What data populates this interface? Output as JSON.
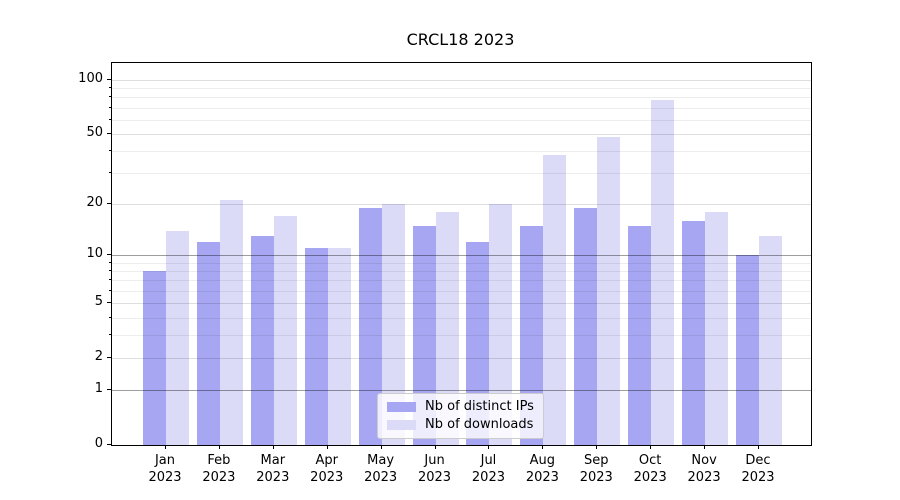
{
  "title": "CRCL18 2023",
  "chart_data": {
    "type": "bar",
    "title": "CRCL18 2023",
    "scale": "symlog",
    "categories": [
      "Jan 2023",
      "Feb 2023",
      "Mar 2023",
      "Apr 2023",
      "May 2023",
      "Jun 2023",
      "Jul 2023",
      "Aug 2023",
      "Sep 2023",
      "Oct 2023",
      "Nov 2023",
      "Dec 2023"
    ],
    "months": [
      "Jan",
      "Feb",
      "Mar",
      "Apr",
      "May",
      "Jun",
      "Jul",
      "Aug",
      "Sep",
      "Oct",
      "Nov",
      "Dec"
    ],
    "year": "2023",
    "series": [
      {
        "name": "Nb of distinct IPs",
        "color": "#a6a6f2",
        "values": [
          8,
          12,
          13,
          11,
          19,
          15,
          12,
          15,
          19,
          15,
          16,
          10
        ]
      },
      {
        "name": "Nb of downloads",
        "color": "#dbdbf8",
        "values": [
          14,
          21,
          17,
          11,
          20,
          18,
          20,
          38,
          48,
          77,
          18,
          13
        ]
      }
    ],
    "xlabel": "",
    "ylabel": "",
    "y_ticks": [
      0,
      1,
      2,
      5,
      10,
      20,
      50,
      100
    ],
    "y_minor_ticks": [
      3,
      4,
      6,
      7,
      8,
      9,
      30,
      40,
      60,
      70,
      80,
      90
    ],
    "y_decade_gridlines": [
      1,
      10
    ],
    "ylim": [
      0,
      124
    ],
    "grid": true,
    "legend_position": "lower center"
  },
  "legend": {
    "items": [
      {
        "label": "Nb of distinct IPs",
        "color": "#a6a6f2"
      },
      {
        "label": "Nb of downloads",
        "color": "#dbdbf8"
      }
    ]
  }
}
